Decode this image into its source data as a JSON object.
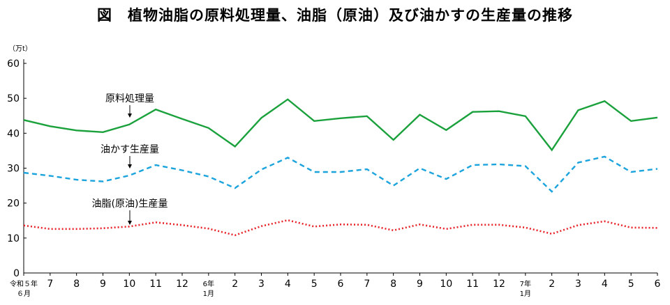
{
  "title": "図　植物油脂の原料処理量、油脂（原油）及び油かすの生産量の推移",
  "chart_data": {
    "type": "line",
    "title": "図　植物油脂の原料処理量、油脂（原油）及び油かすの生産量の推移",
    "ylabel": "（万t）",
    "ylim": [
      0,
      60
    ],
    "yticks": [
      0,
      10,
      20,
      30,
      40,
      50,
      60
    ],
    "grid": false,
    "x": [
      [
        "令和５年",
        "６月"
      ],
      [
        "7"
      ],
      [
        "8"
      ],
      [
        "9"
      ],
      [
        "10"
      ],
      [
        "11"
      ],
      [
        "12"
      ],
      [
        "6年",
        "1月"
      ],
      [
        "2"
      ],
      [
        "3"
      ],
      [
        "4"
      ],
      [
        "5"
      ],
      [
        "6"
      ],
      [
        "7"
      ],
      [
        "8"
      ],
      [
        "9"
      ],
      [
        "10"
      ],
      [
        "11"
      ],
      [
        "12"
      ],
      [
        "7年",
        "1月"
      ],
      [
        "2"
      ],
      [
        "3"
      ],
      [
        "4"
      ],
      [
        "5"
      ],
      [
        "6"
      ]
    ],
    "series": [
      {
        "name": "原料処理量",
        "color": "#1aa13c",
        "style": "solid",
        "values": [
          43.8,
          42.0,
          40.8,
          40.3,
          42.5,
          46.8,
          44.1,
          41.5,
          36.2,
          44.4,
          49.7,
          43.5,
          44.3,
          44.9,
          38.1,
          45.3,
          40.9,
          46.1,
          46.3,
          44.9,
          35.2,
          46.6,
          49.2,
          43.5,
          44.5
        ]
      },
      {
        "name": "油かす生産量",
        "color": "#1ba3dd",
        "style": "dashed",
        "values": [
          28.7,
          27.8,
          26.7,
          26.2,
          27.9,
          30.9,
          29.4,
          27.6,
          24.3,
          29.6,
          33.0,
          28.9,
          28.9,
          29.7,
          25.0,
          30.0,
          26.9,
          30.9,
          31.1,
          30.6,
          23.3,
          31.6,
          33.3,
          28.9,
          29.8
        ]
      },
      {
        "name": "油脂(原油)生産量",
        "color": "#e8232a",
        "style": "dotted",
        "values": [
          13.6,
          12.6,
          12.6,
          12.8,
          13.3,
          14.5,
          13.7,
          12.7,
          10.8,
          13.4,
          15.1,
          13.3,
          13.9,
          13.8,
          12.2,
          13.9,
          12.6,
          13.8,
          13.8,
          13.0,
          11.2,
          13.7,
          14.8,
          13.0,
          12.9
        ]
      }
    ]
  }
}
